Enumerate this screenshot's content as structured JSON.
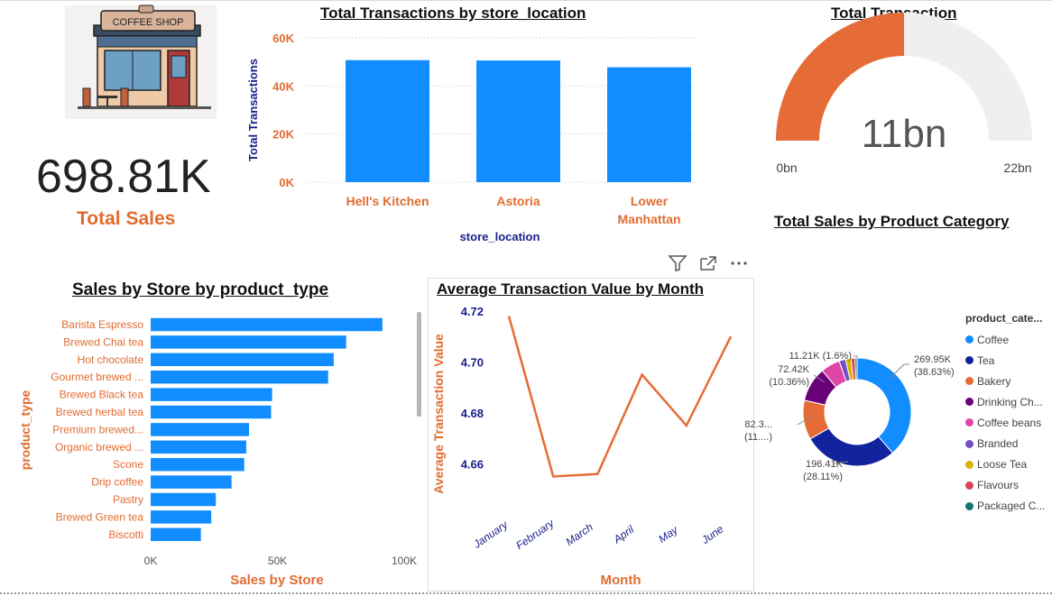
{
  "kpi": {
    "value": "698.81K",
    "label": "Total Sales"
  },
  "logo": {
    "sign_text": "COFFEE SHOP"
  },
  "colors": {
    "bar_blue": "#118dff",
    "orange": "#e66c37",
    "navy": "#12239e",
    "gauge_track": "#f0efee"
  },
  "visual_header": {
    "icons": [
      "filter-icon",
      "focus-mode-icon",
      "more-options-icon"
    ]
  },
  "chart_data": [
    {
      "id": "transactions_by_location",
      "type": "bar",
      "title": "Total Transactions by store_location",
      "xlabel": "store_location",
      "ylabel": "Total Transactions",
      "categories": [
        "Hell's Kitchen",
        "Astoria",
        "Lower Manhattan"
      ],
      "values": [
        50735,
        50599,
        47782
      ],
      "ylim": [
        0,
        60000
      ],
      "yticks": [
        "0K",
        "20K",
        "40K",
        "60K"
      ],
      "grid": true
    },
    {
      "id": "total_transaction_gauge",
      "type": "gauge",
      "title": "Total Transaction",
      "value": 11,
      "value_label": "11bn",
      "min_label": "0bn",
      "max_label": "22bn",
      "min": 0,
      "max": 22
    },
    {
      "id": "sales_by_product_type",
      "type": "bar",
      "orientation": "horizontal",
      "title": "Sales by Store by product_type",
      "xlabel": "Sales by Store",
      "ylabel": "product_type",
      "categories": [
        "Barista Espresso",
        "Brewed Chai tea",
        "Hot chocolate",
        "Gourmet brewed ...",
        "Brewed Black tea",
        "Brewed herbal tea",
        "Premium brewed...",
        "Organic brewed ...",
        "Scone",
        "Drip coffee",
        "Pastry",
        "Brewed Green tea",
        "Biscotti"
      ],
      "values": [
        91400,
        77100,
        72200,
        70000,
        47900,
        47500,
        38800,
        37700,
        36900,
        31900,
        25700,
        23900,
        19800
      ],
      "xlim": [
        0,
        100000
      ],
      "xticks": [
        "0K",
        "50K",
        "100K"
      ]
    },
    {
      "id": "avg_transaction_by_month",
      "type": "line",
      "title": "Average Transaction Value by Month",
      "xlabel": "Month",
      "ylabel": "Average Transaction Value",
      "x": [
        "January",
        "February",
        "March",
        "April",
        "May",
        "June"
      ],
      "values": [
        4.718,
        4.655,
        4.656,
        4.695,
        4.675,
        4.71
      ],
      "ylim": [
        4.65,
        4.72
      ],
      "yticks": [
        "4.66",
        "4.68",
        "4.70",
        "4.72"
      ]
    },
    {
      "id": "sales_by_product_category",
      "type": "pie",
      "donut": true,
      "title": "Total Sales by Product Category",
      "legend_title": "product_cate...",
      "legend_position": "right",
      "slices": [
        {
          "name": "Coffee",
          "value": 269.95,
          "color": "#118dff"
        },
        {
          "name": "Tea",
          "value": 196.41,
          "color": "#12239e"
        },
        {
          "name": "Bakery",
          "value": 82.3,
          "color": "#e66c37"
        },
        {
          "name": "Drinking Ch...",
          "value": 72.42,
          "color": "#6b007b"
        },
        {
          "name": "Coffee beans",
          "value": 40.09,
          "color": "#e044a7"
        },
        {
          "name": "Branded",
          "value": 13.61,
          "color": "#744ec2"
        },
        {
          "name": "Loose Tea",
          "value": 11.21,
          "color": "#d9b300"
        },
        {
          "name": "Flavours",
          "value": 8.41,
          "color": "#d64550"
        },
        {
          "name": "Packaged C...",
          "value": 4.41,
          "color": "#197278"
        }
      ],
      "data_labels": [
        {
          "slice": "Coffee",
          "line1": "269.95K",
          "line2": "(38.63%)"
        },
        {
          "slice": "Tea",
          "line1": "196.41K",
          "line2": "(28.11%)"
        },
        {
          "slice": "Bakery",
          "line1": "82.3...",
          "line2": "(11....)"
        },
        {
          "slice": "Drinking Ch...",
          "line1": "72.42K",
          "line2": "(10.36%)"
        },
        {
          "slice": "Loose Tea",
          "line1": "11.21K (1.6%)",
          "line2": ""
        }
      ]
    }
  ]
}
